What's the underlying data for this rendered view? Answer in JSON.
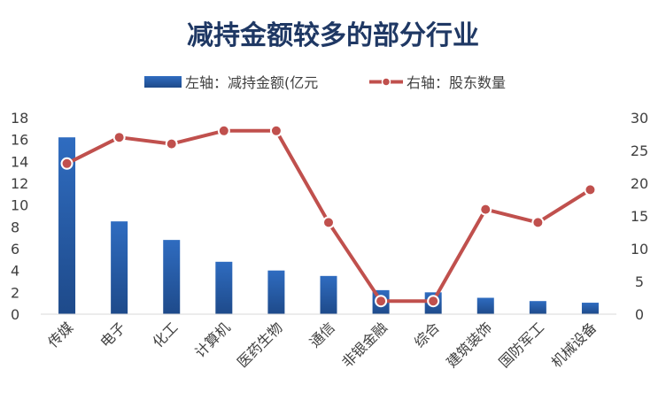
{
  "chart_data": {
    "type": "bar+line",
    "title": "减持金额较多的部分行业",
    "categories": [
      "传媒",
      "电子",
      "化工",
      "计算机",
      "医药生物",
      "通信",
      "非银金融",
      "综合",
      "建筑装饰",
      "国防军工",
      "机械设备"
    ],
    "series": [
      {
        "name": "左轴：减持金额(亿元",
        "type": "bar",
        "axis": "left",
        "color": "#2f6cc0",
        "values": [
          16.2,
          8.5,
          6.8,
          4.8,
          4.0,
          3.5,
          2.2,
          2.0,
          1.5,
          1.2,
          1.05
        ]
      },
      {
        "name": "右轴：股东数量",
        "type": "line",
        "axis": "right",
        "color": "#c0504d",
        "values": [
          23,
          27,
          26,
          28,
          28,
          14,
          2,
          2,
          16,
          14,
          19
        ]
      }
    ],
    "left_axis": {
      "min": 0,
      "max": 18,
      "step": 2,
      "ticks": [
        "0",
        "2",
        "4",
        "6",
        "8",
        "10",
        "12",
        "14",
        "16",
        "18"
      ]
    },
    "right_axis": {
      "min": 0,
      "max": 30,
      "step": 5,
      "ticks": [
        "0",
        "5",
        "10",
        "15",
        "20",
        "25",
        "30"
      ]
    },
    "grid": false,
    "legend_position": "top"
  }
}
